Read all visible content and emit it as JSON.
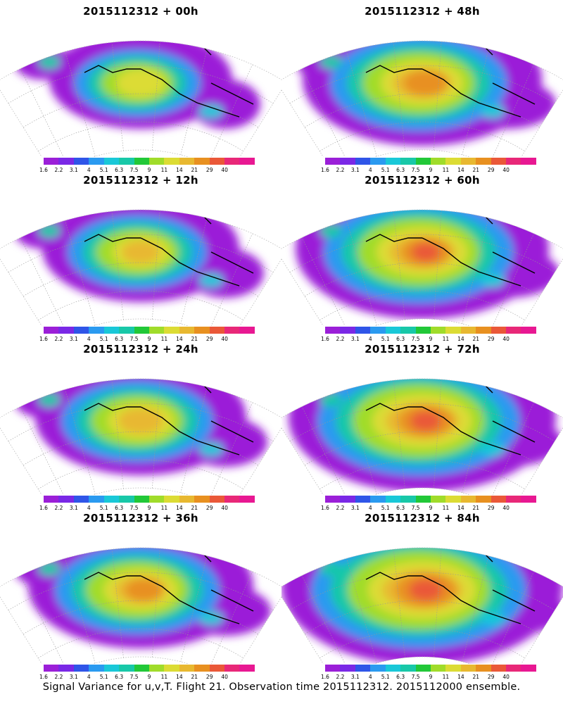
{
  "panels": [
    {
      "title": "2015112312 + 00h",
      "level": 0
    },
    {
      "title": "2015112312 + 48h",
      "level": 4
    },
    {
      "title": "2015112312 + 12h",
      "level": 1
    },
    {
      "title": "2015112312 + 60h",
      "level": 5
    },
    {
      "title": "2015112312 + 24h",
      "level": 2
    },
    {
      "title": "2015112312 + 72h",
      "level": 6
    },
    {
      "title": "2015112312 + 36h",
      "level": 3
    },
    {
      "title": "2015112312 + 84h",
      "level": 7
    }
  ],
  "colorbar": {
    "colors": [
      "#9b1fd8",
      "#7a28e6",
      "#2f55e8",
      "#2a9af0",
      "#19c8d8",
      "#18c8a8",
      "#22c838",
      "#a0dc2a",
      "#dcdc34",
      "#e8b830",
      "#e89020",
      "#ea5838",
      "#e82878",
      "#e81892"
    ],
    "labels": [
      "1.6",
      "2.2",
      "3.1",
      "4",
      "5.1",
      "6.3",
      "7.5",
      "9",
      "11",
      "14",
      "21",
      "29",
      "40"
    ]
  },
  "caption": "Signal Variance for u,v,T. Flight 21. Observation time 2015112312. 2015112000 ensemble."
}
